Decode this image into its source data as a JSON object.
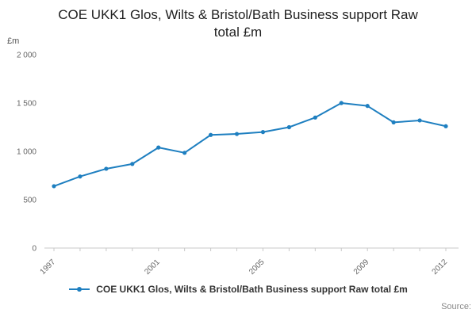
{
  "chart_data": {
    "type": "line",
    "title": "COE UKK1 Glos, Wilts & Bristol/Bath Business support Raw total £m",
    "ylabel": "£m",
    "xlabel": "",
    "x": [
      1997,
      1998,
      1999,
      2000,
      2001,
      2002,
      2003,
      2004,
      2005,
      2006,
      2007,
      2008,
      2009,
      2010,
      2011,
      2012
    ],
    "values": [
      640,
      740,
      820,
      870,
      1040,
      985,
      1170,
      1180,
      1200,
      1250,
      1350,
      1500,
      1470,
      1300,
      1320,
      1260
    ],
    "ylim": [
      0,
      2000
    ],
    "yticks": [
      {
        "v": 0,
        "label": "0"
      },
      {
        "v": 500,
        "label": "500"
      },
      {
        "v": 1000,
        "label": "1 000"
      },
      {
        "v": 1500,
        "label": "1 500"
      },
      {
        "v": 2000,
        "label": "2 000"
      }
    ],
    "xticks": [
      {
        "v": 1997,
        "label": "1997"
      },
      {
        "v": 2001,
        "label": "2001"
      },
      {
        "v": 2005,
        "label": "2005"
      },
      {
        "v": 2009,
        "label": "2009"
      },
      {
        "v": 2012,
        "label": "2012"
      }
    ],
    "line_color": "#1e7fc0",
    "axis_color": "#c8c8c8",
    "grid": false,
    "legend_position": "bottom"
  },
  "legend": {
    "label": "COE UKK1 Glos, Wilts & Bristol/Bath Business support Raw total £m"
  },
  "source": {
    "label": "Source:"
  }
}
